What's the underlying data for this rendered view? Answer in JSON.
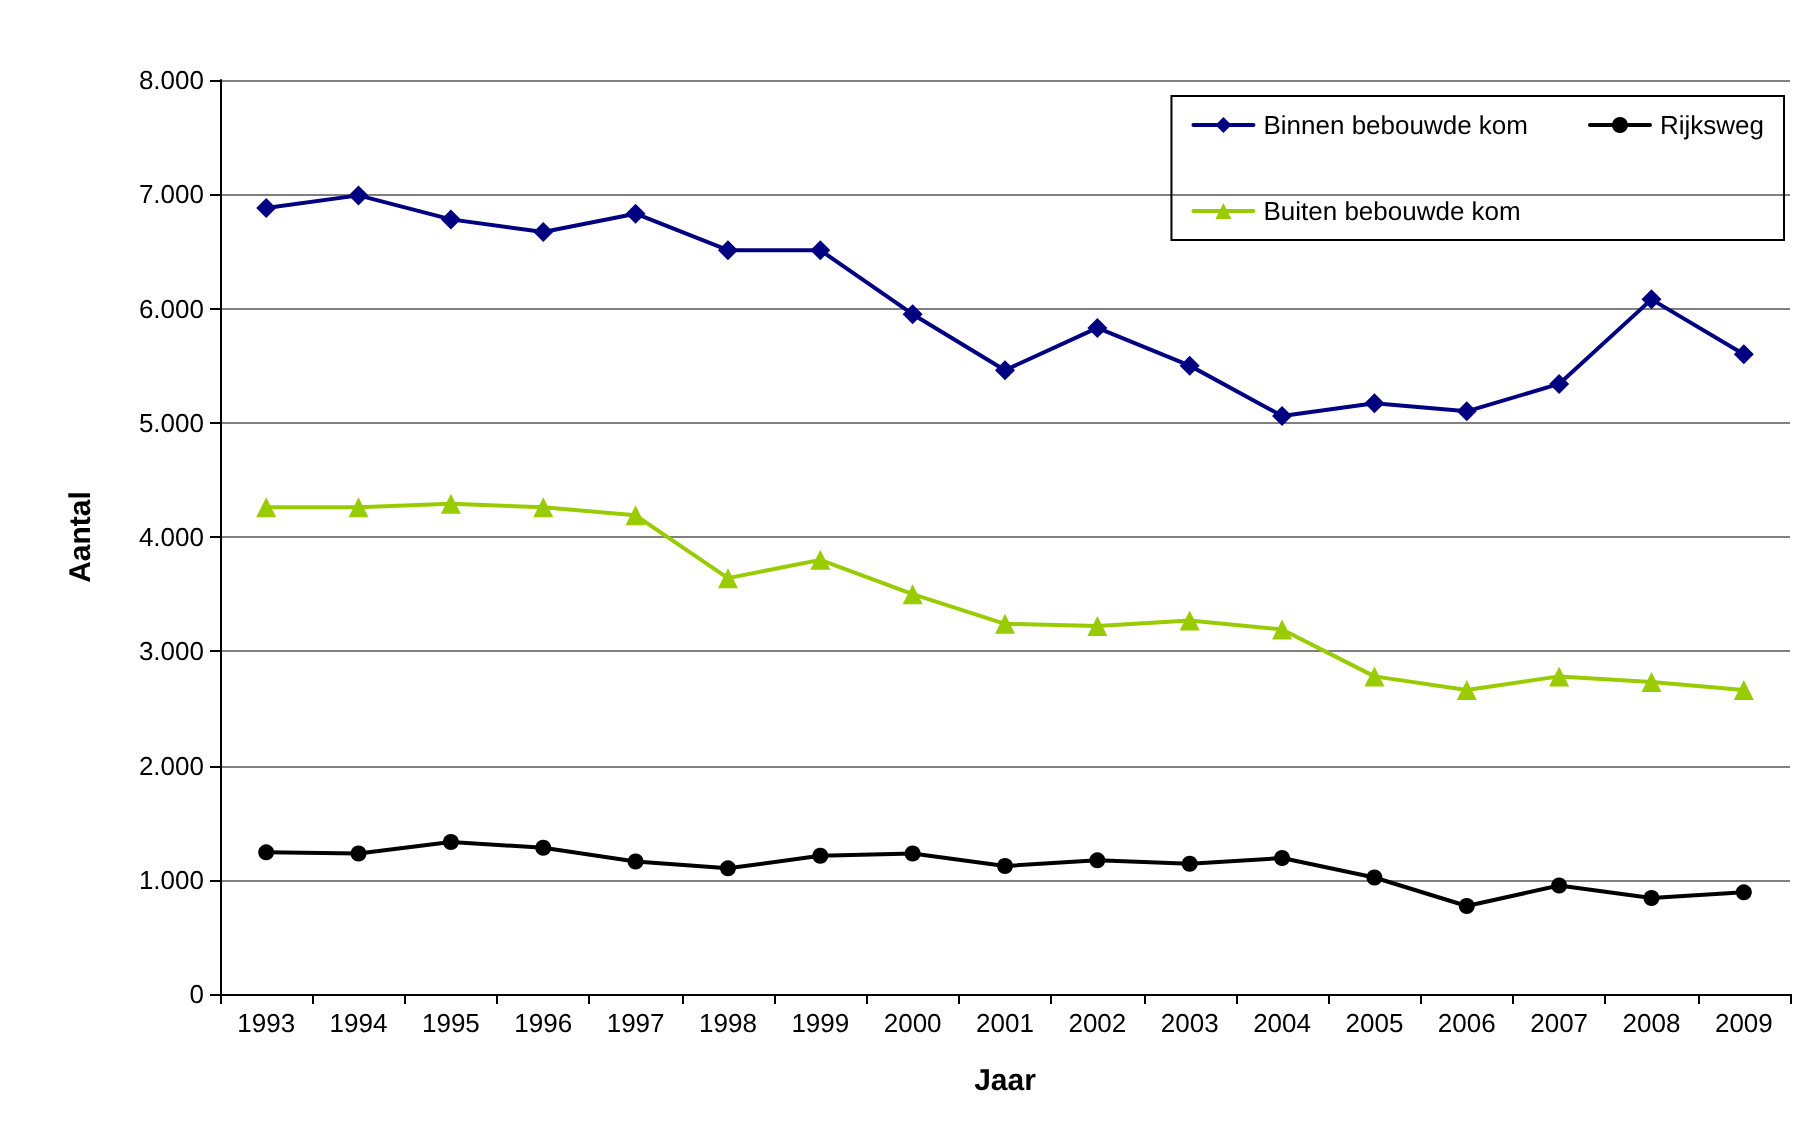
{
  "chart_data": {
    "type": "line",
    "xlabel": "Jaar",
    "ylabel": "Aantal",
    "categories": [
      "1993",
      "1994",
      "1995",
      "1996",
      "1997",
      "1998",
      "1999",
      "2000",
      "2001",
      "2002",
      "2003",
      "2004",
      "2005",
      "2006",
      "2007",
      "2008",
      "2009"
    ],
    "series": [
      {
        "name": "Binnen bebouwde kom",
        "color": "#000080",
        "marker": "diamond",
        "values": [
          6880,
          6990,
          6780,
          6670,
          6830,
          6510,
          6510,
          5950,
          5460,
          5830,
          5500,
          5060,
          5170,
          5100,
          5340,
          6080,
          5600
        ]
      },
      {
        "name": "Rijksweg",
        "color": "#000000",
        "marker": "circle",
        "values": [
          1240,
          1230,
          1330,
          1280,
          1160,
          1100,
          1210,
          1230,
          1120,
          1170,
          1140,
          1190,
          1020,
          770,
          950,
          840,
          890
        ]
      },
      {
        "name": "Buiten bebouwde kom",
        "color": "#99cc00",
        "marker": "triangle",
        "values": [
          4260,
          4260,
          4290,
          4260,
          4190,
          3640,
          3800,
          3500,
          3240,
          3220,
          3270,
          3190,
          2780,
          2660,
          2780,
          2730,
          2660
        ]
      }
    ],
    "ylim": [
      0,
      8000
    ],
    "yticks": [
      {
        "value": 0,
        "label": "0"
      },
      {
        "value": 1000,
        "label": "1.000"
      },
      {
        "value": 2000,
        "label": "2.000"
      },
      {
        "value": 3000,
        "label": "3.000"
      },
      {
        "value": 4000,
        "label": "4.000"
      },
      {
        "value": 5000,
        "label": "5.000"
      },
      {
        "value": 6000,
        "label": "6.000"
      },
      {
        "value": 7000,
        "label": "7.000"
      },
      {
        "value": 8000,
        "label": "8.000"
      }
    ],
    "grid": "y",
    "legend": "top right",
    "line_style": "solid"
  }
}
